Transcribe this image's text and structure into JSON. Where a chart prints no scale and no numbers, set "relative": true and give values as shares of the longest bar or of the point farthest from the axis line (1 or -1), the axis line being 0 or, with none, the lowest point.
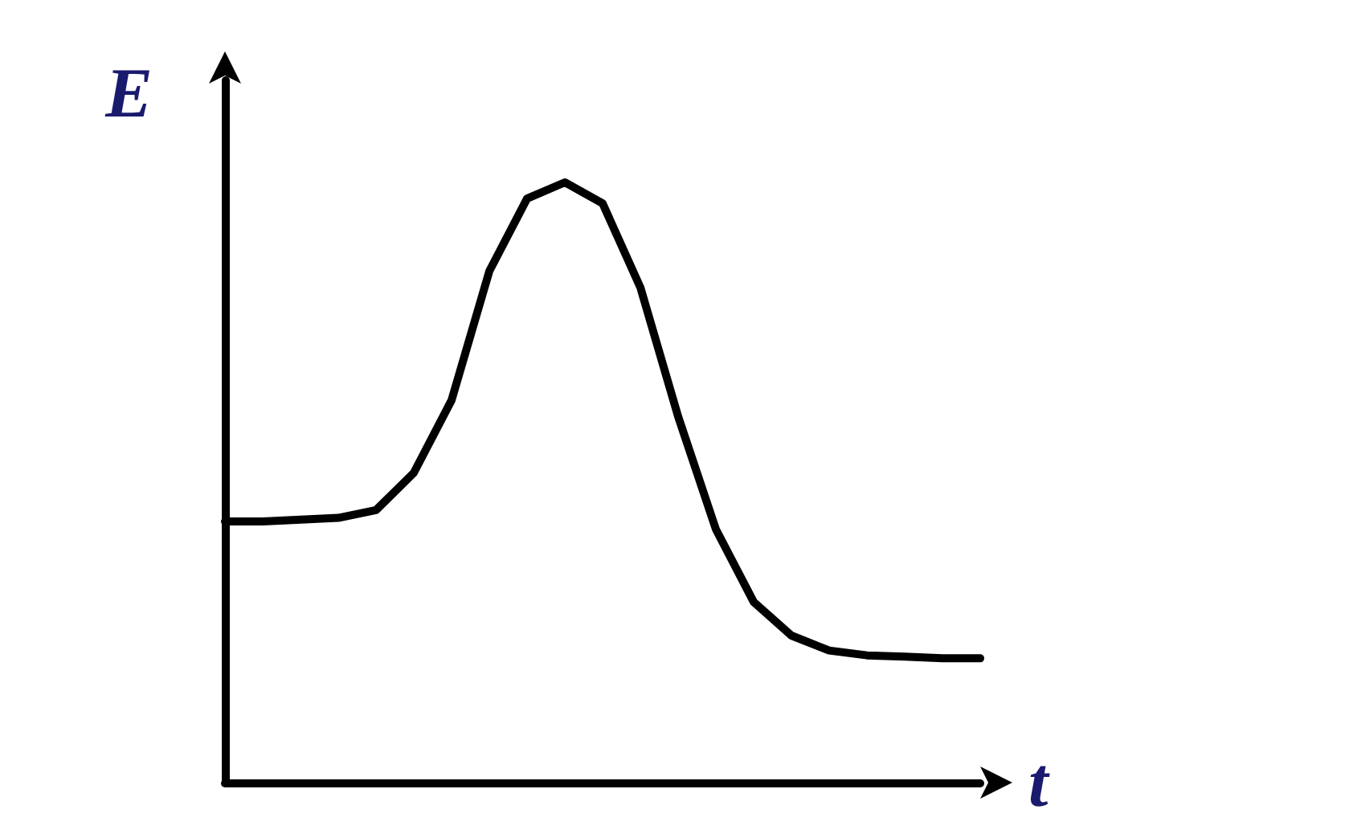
{
  "chart_data": {
    "type": "line",
    "relative": true,
    "xlabel": "t",
    "ylabel": "E",
    "marker": "none",
    "line_style": "solid",
    "grid": false,
    "categories": [
      null,
      null,
      null,
      null,
      null,
      null,
      null,
      null,
      null,
      null,
      null,
      null,
      null,
      null,
      null,
      null,
      null,
      null,
      null,
      null,
      null
    ],
    "series": [
      {
        "color": "#000000",
        "values": [
          0.435,
          0.435,
          0.438,
          0.441,
          0.454,
          0.516,
          0.637,
          0.852,
          0.973,
          1,
          0.965,
          0.825,
          0.61,
          0.422,
          0.301,
          0.245,
          0.22,
          0.212,
          0.21,
          0.207,
          0.207
        ]
      }
    ]
  }
}
